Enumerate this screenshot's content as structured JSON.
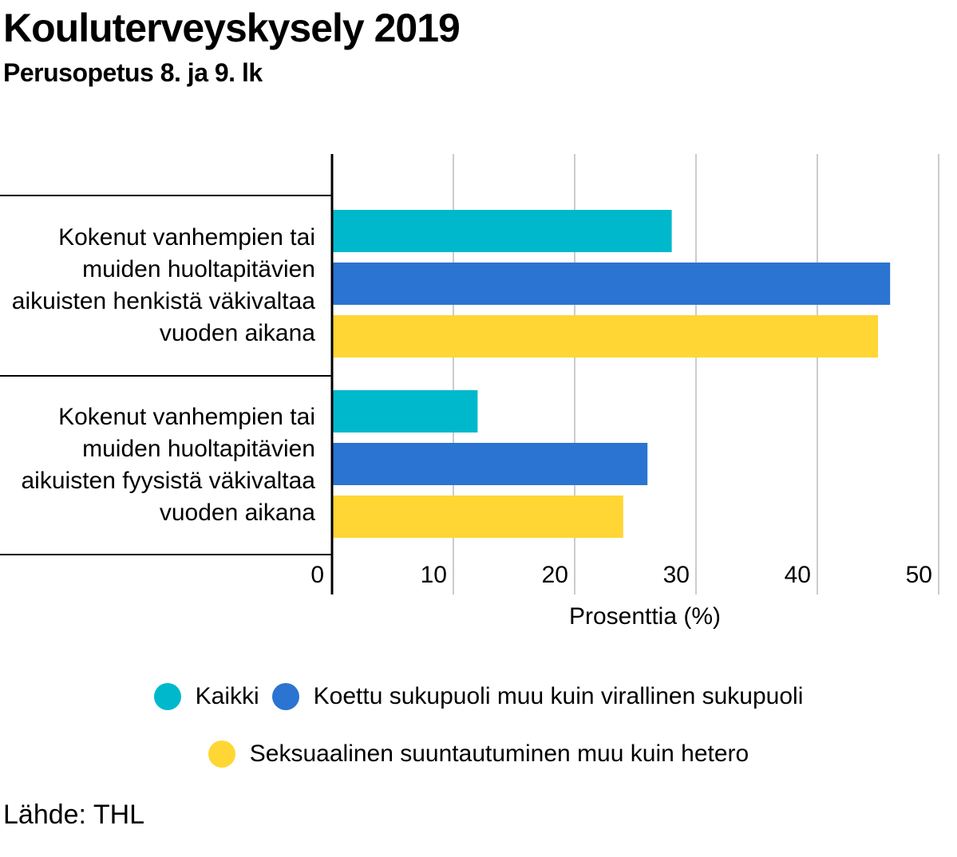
{
  "title": "Kouluterveyskysely 2019",
  "subtitle": "Perusopetus 8. ja 9. lk",
  "source": "Lähde: THL",
  "chart_data": {
    "type": "bar",
    "orientation": "horizontal",
    "categories": [
      "Kokenut vanhempien tai muiden huoltapitävien aikuisten henkistä väkivaltaa vuoden aikana",
      "Kokenut vanhempien tai muiden huoltapitävien aikuisten fyysistä väkivaltaa vuoden aikana"
    ],
    "category_lines": [
      [
        "Kokenut vanhempien tai",
        "muiden huoltapitävien",
        "aikuisten henkistä väkivaltaa",
        "vuoden aikana"
      ],
      [
        "Kokenut vanhempien tai",
        "muiden huoltapitävien",
        "aikuisten fyysistä väkivaltaa",
        "vuoden aikana"
      ]
    ],
    "series": [
      {
        "name": "Kaikki",
        "color": "#00b8cc",
        "values": [
          28,
          12
        ]
      },
      {
        "name": "Koettu sukupuoli muu kuin virallinen sukupuoli",
        "color": "#2b74d1",
        "values": [
          46,
          26
        ]
      },
      {
        "name": "Seksuaalinen suuntautuminen muu kuin hetero",
        "color": "#ffd633",
        "values": [
          45,
          24
        ]
      }
    ],
    "xlabel": "Prosenttia (%)",
    "xlim": [
      0,
      50
    ],
    "ticks": [
      "0",
      "10",
      "20",
      "30",
      "40",
      "50"
    ],
    "grid": true,
    "legend_position": "bottom"
  }
}
